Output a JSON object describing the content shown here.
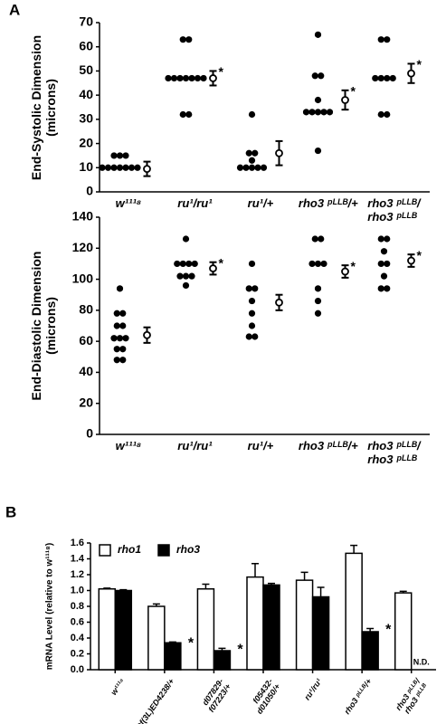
{
  "panel_labels": [
    "A",
    "B"
  ],
  "chart_data": [
    {
      "type": "strip",
      "ylabel": "End-Systolic Dimension\n(microns)",
      "categories": [
        "w¹¹¹⁸",
        "ru¹/ru¹",
        "ru¹/+",
        "rho3 ᵖᴸᴸᴮ/+",
        "rho3 ᵖᴸᴸᴮ/\nrho3 ᵖᴸᴸᴮ"
      ],
      "points": [
        [
          15,
          15,
          15,
          10,
          10,
          10,
          10,
          10,
          10,
          10
        ],
        [
          63,
          63,
          47,
          47,
          47,
          47,
          47,
          47,
          47,
          32,
          32
        ],
        [
          32,
          16,
          16,
          13,
          10,
          10,
          10,
          10,
          10
        ],
        [
          65,
          48,
          48,
          38,
          33,
          33,
          33,
          33,
          33,
          17
        ],
        [
          63,
          63,
          47,
          47,
          47,
          47,
          32,
          32
        ]
      ],
      "means": [
        9.5,
        47,
        16,
        38,
        49
      ],
      "errors": [
        3,
        3,
        5,
        4,
        4
      ],
      "significance": [
        null,
        "*",
        null,
        "*",
        "*"
      ],
      "color": "#000000",
      "ylim": [
        0,
        70
      ],
      "yticks": [
        0,
        10,
        20,
        30,
        40,
        50,
        60,
        70
      ]
    },
    {
      "type": "strip",
      "ylabel": "End-Diastolic Dimension\n(microns)",
      "categories": [
        "w¹¹¹⁸",
        "ru¹/ru¹",
        "ru¹/+",
        "rho3 ᵖᴸᴸᴮ/+",
        "rho3 ᵖᴸᴸᴮ/\nrho3 ᵖᴸᴸᴮ"
      ],
      "points": [
        [
          94,
          78,
          78,
          70,
          70,
          62,
          62,
          62,
          55,
          55,
          48,
          48
        ],
        [
          126,
          110,
          110,
          110,
          110,
          102,
          102,
          102,
          96
        ],
        [
          110,
          94,
          94,
          86,
          78,
          70,
          63,
          63
        ],
        [
          126,
          126,
          110,
          110,
          110,
          94,
          86,
          78
        ],
        [
          126,
          126,
          118,
          110,
          110,
          102,
          94,
          94
        ]
      ],
      "means": [
        64,
        107,
        85,
        105,
        112
      ],
      "errors": [
        5,
        4,
        5,
        4,
        4
      ],
      "significance": [
        null,
        "*",
        null,
        "*",
        "*"
      ],
      "color": "#000000",
      "ylim": [
        0,
        140
      ],
      "yticks": [
        0,
        20,
        40,
        60,
        80,
        100,
        120,
        140
      ]
    },
    {
      "type": "bar",
      "ylabel": "mRNA Level (relative to w¹¹¹⁸)",
      "categories": [
        "w¹¹¹⁸",
        "Df(3L)ED4238/+",
        "d07829-\nf07223/+",
        "f05432-\nd01050/+",
        "ru¹/ru¹",
        "rho3 ᵖᴸᴸᴮ/+",
        "rho3 ᵖᴸᴸᴮ/\nrho3 ᵖᴸᴸᴮ"
      ],
      "series": [
        {
          "name": "rho1",
          "color": "#ffffff",
          "values": [
            1.02,
            0.8,
            1.02,
            1.17,
            1.13,
            1.47,
            0.97
          ],
          "errors": [
            0.01,
            0.03,
            0.06,
            0.17,
            0.1,
            0.1,
            0.02
          ],
          "significance": [
            null,
            null,
            null,
            null,
            null,
            null,
            null
          ]
        },
        {
          "name": "rho3",
          "color": "#000000",
          "values": [
            1.0,
            0.34,
            0.24,
            1.07,
            0.92,
            0.48,
            null
          ],
          "errors": [
            0.01,
            0.01,
            0.03,
            0.02,
            0.12,
            0.04,
            null
          ],
          "significance": [
            null,
            "*",
            "*",
            null,
            null,
            "*",
            null
          ],
          "value_labels": [
            null,
            null,
            null,
            null,
            null,
            null,
            "N.D."
          ]
        }
      ],
      "ylim": [
        0,
        1.6
      ],
      "yticks": [
        {
          "value": 0,
          "label": "0.0"
        },
        0.2,
        0.4,
        0.6,
        0.8,
        {
          "value": 1,
          "label": "1.0"
        },
        1.2,
        1.4,
        1.6
      ],
      "legend": "top-left"
    }
  ]
}
